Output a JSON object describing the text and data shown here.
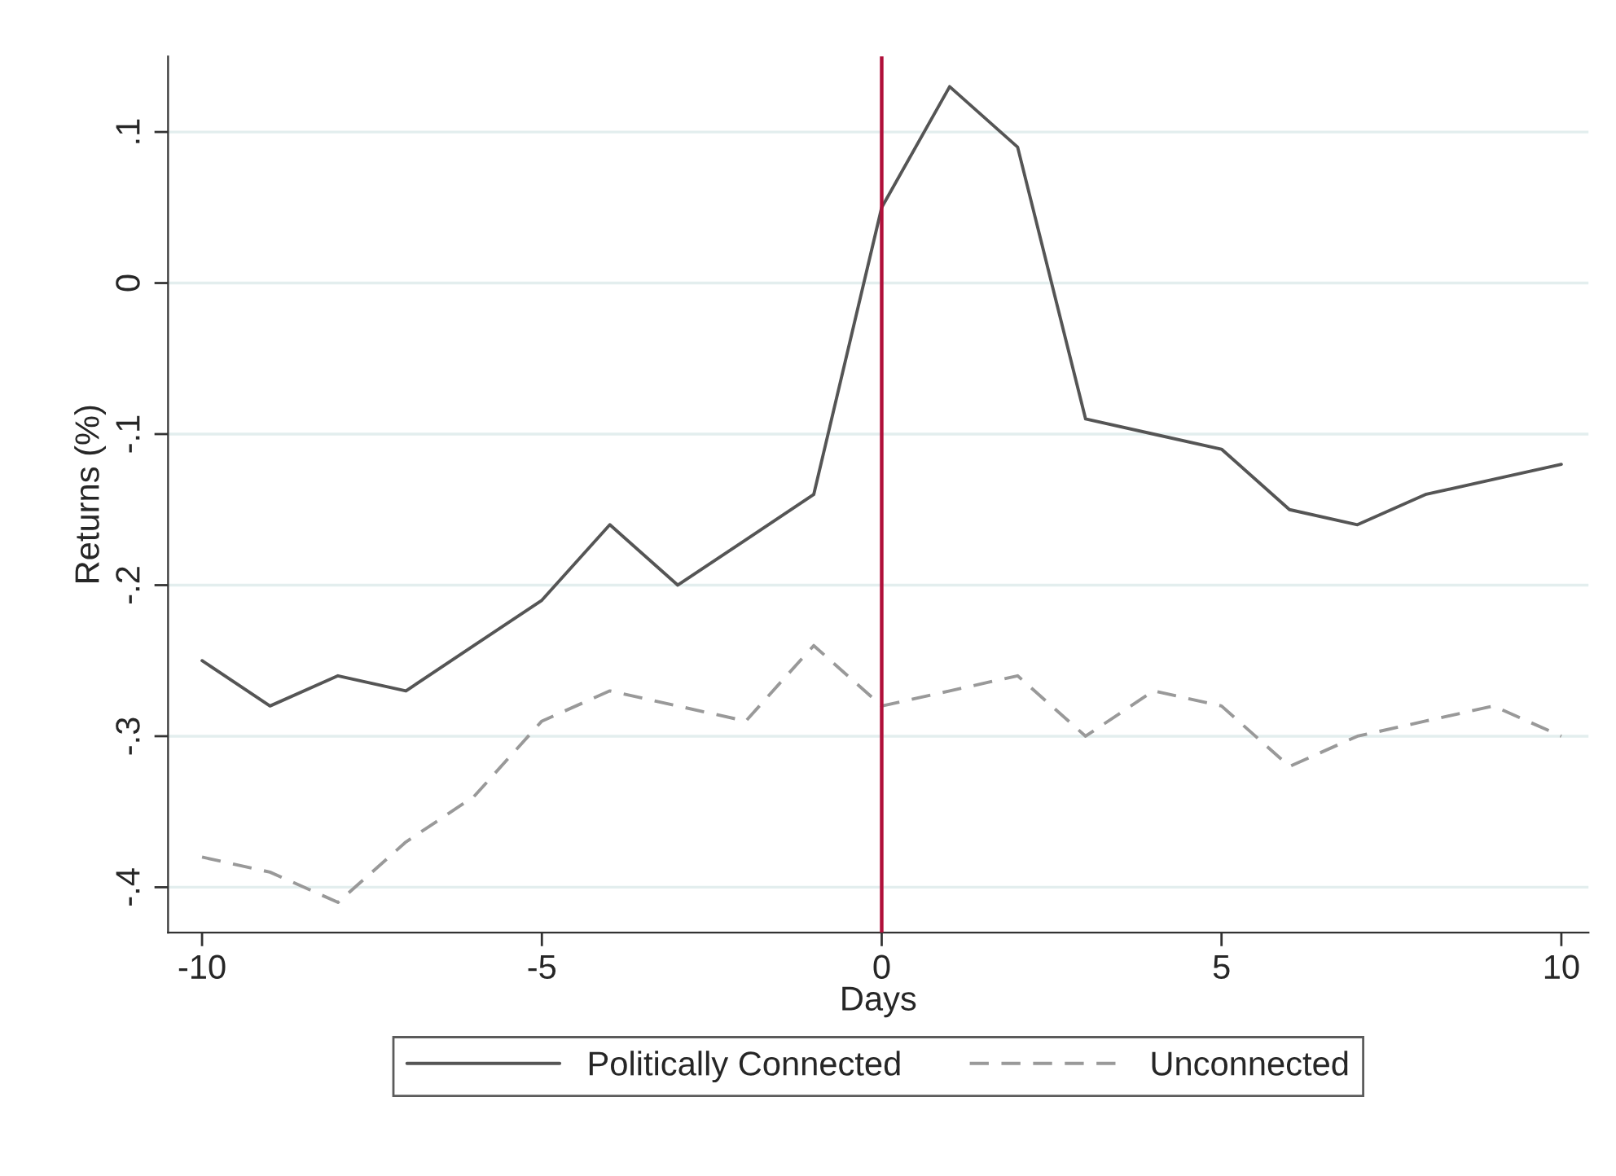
{
  "chart_data": {
    "type": "line",
    "xlabel": "Days",
    "ylabel": "Returns (%)",
    "x": [
      -10,
      -9,
      -8,
      -7,
      -6,
      -5,
      -4,
      -3,
      -2,
      -1,
      0,
      1,
      2,
      3,
      4,
      5,
      6,
      7,
      8,
      9,
      10
    ],
    "series": [
      {
        "name": "Politically Connected",
        "color": "#555555",
        "line_style": "solid",
        "values": [
          -0.25,
          -0.28,
          -0.26,
          -0.27,
          -0.24,
          -0.21,
          -0.16,
          -0.2,
          -0.17,
          -0.14,
          0.05,
          0.13,
          0.09,
          -0.09,
          -0.1,
          -0.11,
          -0.15,
          -0.16,
          -0.14,
          -0.13,
          -0.12
        ]
      },
      {
        "name": "Unconnected",
        "color": "#999999",
        "line_style": "dashed",
        "values": [
          -0.38,
          -0.39,
          -0.41,
          -0.37,
          -0.34,
          -0.29,
          -0.27,
          -0.28,
          -0.29,
          -0.24,
          -0.28,
          -0.27,
          -0.26,
          -0.3,
          -0.27,
          -0.28,
          -0.32,
          -0.3,
          -0.29,
          -0.28,
          -0.3
        ]
      }
    ],
    "xlim": [
      -10.5,
      10.4
    ],
    "xticks": [
      -10,
      -5,
      0,
      5,
      10
    ],
    "ylim": [
      -0.43,
      0.15
    ],
    "yticks": [
      {
        "value": -0.4,
        "label": "-.4"
      },
      {
        "value": -0.3,
        "label": "-.3"
      },
      {
        "value": -0.2,
        "label": "-.2"
      },
      {
        "value": -0.1,
        "label": "-.1"
      },
      {
        "value": 0,
        "label": "0"
      },
      {
        "value": 0.1,
        "label": ".1"
      }
    ],
    "ref_lines": [
      {
        "axis": "x",
        "value": 0,
        "color": "#b0103a"
      }
    ],
    "grid": "y",
    "legend": "bottom",
    "marker": "none"
  }
}
